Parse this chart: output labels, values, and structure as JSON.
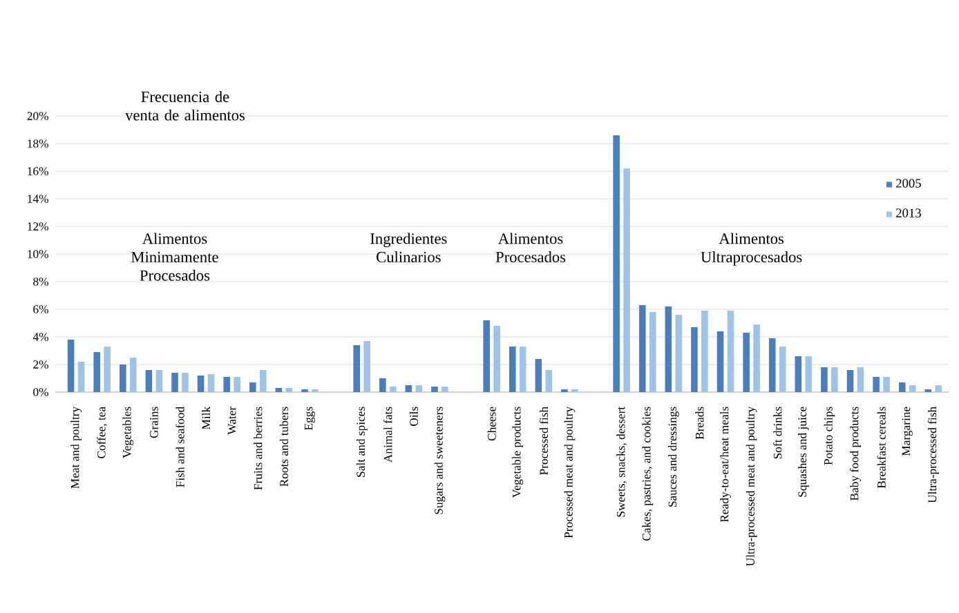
{
  "chart_data": {
    "type": "bar",
    "title": "Frecuencia de venta de alimentos",
    "annotations": [
      "Alimentos Minimamente Procesados",
      "Ingredientes Culinarios",
      "Alimentos Procesados",
      "Alimentos Ultraprocesados"
    ],
    "categories": [
      "Meat and poultry",
      "Coffee, tea",
      "Vegetables",
      "Grains",
      "Fish and seafood",
      "Milk",
      "Water",
      "Fruits and berries",
      "Roots and tubers",
      "Eggs",
      null,
      "Salt and spices",
      "Animal fats",
      "Oils",
      "Sugars and sweeteners",
      null,
      "Cheese",
      "Vegetable products",
      "Processed fish",
      "Processed meat and poultry",
      null,
      "Sweets, snacks, dessert",
      "Cakes, pastries, and cookies",
      "Sauces and dressings",
      "Breads",
      "Ready-to-eat/heat meals",
      "Ultra-processed meat and poultry",
      "Soft drinks",
      "Squashes and juice",
      "Potato chips",
      "Baby food products",
      "Breakfast cereals",
      "Margarine",
      "Ultra-processed fish"
    ],
    "series": [
      {
        "name": "2005",
        "color": "#4a7ebb",
        "values": [
          3.8,
          2.9,
          2.0,
          1.6,
          1.4,
          1.2,
          1.1,
          0.7,
          0.3,
          0.2,
          null,
          3.4,
          1.0,
          0.5,
          0.4,
          null,
          5.2,
          3.3,
          2.4,
          0.2,
          null,
          18.6,
          6.3,
          6.2,
          4.7,
          4.4,
          4.3,
          3.9,
          2.6,
          1.8,
          1.6,
          1.1,
          0.7,
          0.2
        ]
      },
      {
        "name": "2013",
        "color": "#9dc3e6",
        "values": [
          2.2,
          3.3,
          2.5,
          1.6,
          1.4,
          1.3,
          1.1,
          1.6,
          0.3,
          0.2,
          null,
          3.7,
          0.4,
          0.5,
          0.4,
          null,
          4.8,
          3.3,
          1.6,
          0.2,
          null,
          16.2,
          5.8,
          5.6,
          5.9,
          5.9,
          4.9,
          3.3,
          2.6,
          1.8,
          1.8,
          1.1,
          0.5,
          0.5
        ]
      }
    ],
    "ylim": [
      0,
      20
    ],
    "yticks": [
      {
        "value": 0,
        "label": "0%"
      },
      {
        "value": 2,
        "label": "2%"
      },
      {
        "value": 4,
        "label": "4%"
      },
      {
        "value": 6,
        "label": "6%"
      },
      {
        "value": 8,
        "label": "8%"
      },
      {
        "value": 10,
        "label": "10%"
      },
      {
        "value": 12,
        "label": "12%"
      },
      {
        "value": 14,
        "label": "14%"
      },
      {
        "value": 16,
        "label": "16%"
      },
      {
        "value": 18,
        "label": "18%"
      },
      {
        "value": 20,
        "label": "20%"
      }
    ],
    "grid": "y",
    "legend": "top right"
  }
}
